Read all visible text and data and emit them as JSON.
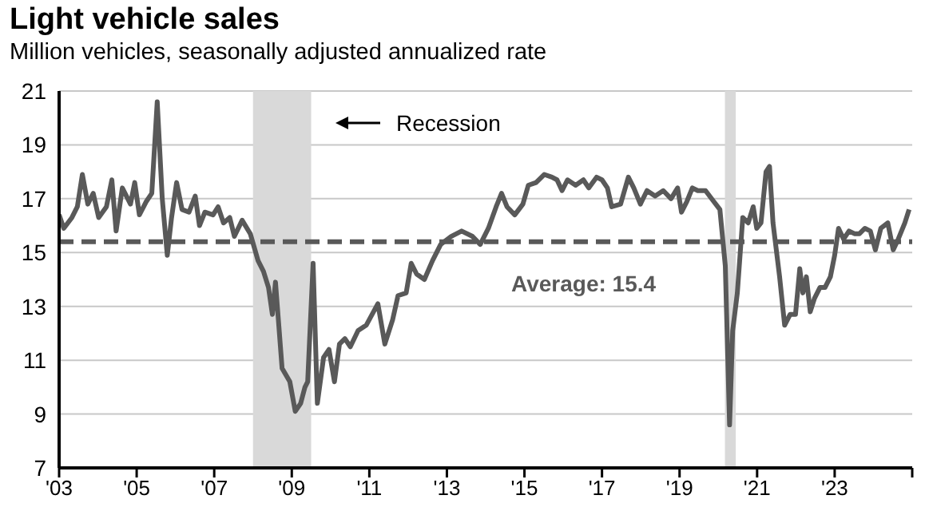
{
  "chart_data": {
    "type": "line",
    "title": "Light vehicle sales",
    "subtitle": "Million vehicles, seasonally adjusted annualized rate",
    "x": [
      2003.0,
      2003.12,
      2003.33,
      2003.47,
      2003.6,
      2003.74,
      2003.88,
      2004.02,
      2004.22,
      2004.36,
      2004.47,
      2004.63,
      2004.84,
      2004.95,
      2005.07,
      2005.25,
      2005.39,
      2005.53,
      2005.66,
      2005.79,
      2005.9,
      2006.03,
      2006.17,
      2006.35,
      2006.51,
      2006.62,
      2006.76,
      2006.97,
      2007.1,
      2007.24,
      2007.4,
      2007.52,
      2007.72,
      2007.93,
      2008.13,
      2008.27,
      2008.4,
      2008.5,
      2008.58,
      2008.75,
      2008.95,
      2009.09,
      2009.23,
      2009.34,
      2009.41,
      2009.55,
      2009.66,
      2009.82,
      2009.96,
      2010.1,
      2010.23,
      2010.37,
      2010.51,
      2010.71,
      2010.92,
      2011.22,
      2011.4,
      2011.6,
      2011.74,
      2011.95,
      2012.08,
      2012.22,
      2012.42,
      2012.63,
      2012.84,
      2013.11,
      2013.38,
      2013.66,
      2013.86,
      2014.07,
      2014.27,
      2014.41,
      2014.55,
      2014.75,
      2014.96,
      2015.1,
      2015.3,
      2015.51,
      2015.71,
      2015.84,
      2015.97,
      2016.11,
      2016.32,
      2016.52,
      2016.66,
      2016.86,
      2017.0,
      2017.14,
      2017.25,
      2017.48,
      2017.68,
      2017.82,
      2017.99,
      2018.16,
      2018.37,
      2018.58,
      2018.78,
      2018.95,
      2019.05,
      2019.19,
      2019.33,
      2019.47,
      2019.67,
      2019.88,
      2020.04,
      2020.18,
      2020.29,
      2020.37,
      2020.49,
      2020.63,
      2020.77,
      2020.9,
      2020.99,
      2021.1,
      2021.23,
      2021.32,
      2021.41,
      2021.58,
      2021.71,
      2021.85,
      2021.99,
      2022.1,
      2022.18,
      2022.27,
      2022.37,
      2022.48,
      2022.62,
      2022.75,
      2022.89,
      2023.0,
      2023.1,
      2023.23,
      2023.37,
      2023.51,
      2023.64,
      2023.78,
      2023.92,
      2024.05,
      2024.19,
      2024.37,
      2024.51,
      2024.64,
      2024.81,
      2024.92
    ],
    "series": [
      {
        "color": "#595959",
        "values": [
          16.4,
          15.9,
          16.3,
          16.7,
          17.9,
          16.8,
          17.2,
          16.3,
          16.7,
          17.7,
          15.8,
          17.4,
          16.8,
          17.6,
          16.4,
          16.9,
          17.2,
          20.6,
          17.0,
          14.9,
          16.3,
          17.6,
          16.6,
          16.5,
          17.1,
          16.0,
          16.5,
          16.4,
          16.7,
          16.1,
          16.3,
          15.6,
          16.2,
          15.7,
          14.7,
          14.3,
          13.7,
          12.7,
          13.9,
          10.7,
          10.2,
          9.1,
          9.4,
          10.0,
          10.2,
          14.6,
          9.4,
          11.1,
          11.4,
          10.2,
          11.6,
          11.8,
          11.5,
          12.1,
          12.3,
          13.1,
          11.6,
          12.5,
          13.4,
          13.5,
          14.6,
          14.2,
          14.0,
          14.7,
          15.3,
          15.6,
          15.8,
          15.6,
          15.3,
          15.9,
          16.7,
          17.2,
          16.7,
          16.4,
          16.8,
          17.5,
          17.6,
          17.9,
          17.8,
          17.7,
          17.3,
          17.7,
          17.5,
          17.7,
          17.4,
          17.8,
          17.7,
          17.4,
          16.7,
          16.8,
          17.8,
          17.4,
          16.8,
          17.3,
          17.1,
          17.3,
          17.0,
          17.4,
          16.5,
          16.9,
          17.4,
          17.3,
          17.3,
          16.9,
          16.6,
          14.5,
          8.6,
          12.1,
          13.5,
          16.3,
          16.1,
          16.7,
          15.9,
          16.1,
          18.0,
          18.2,
          16.1,
          14.1,
          12.3,
          12.7,
          12.7,
          14.4,
          13.5,
          14.1,
          12.8,
          13.3,
          13.7,
          13.7,
          14.1,
          14.9,
          15.9,
          15.5,
          15.8,
          15.7,
          15.7,
          15.9,
          15.8,
          15.1,
          15.9,
          16.1,
          15.1,
          15.5,
          16.1,
          16.6
        ]
      }
    ],
    "xlim": [
      2003,
      2025
    ],
    "xticks": [
      {
        "value": 2003,
        "label": "'03"
      },
      {
        "value": 2005,
        "label": "'05"
      },
      {
        "value": 2007,
        "label": "'07"
      },
      {
        "value": 2009,
        "label": "'09"
      },
      {
        "value": 2011,
        "label": "'11"
      },
      {
        "value": 2013,
        "label": "'13"
      },
      {
        "value": 2015,
        "label": "'15"
      },
      {
        "value": 2017,
        "label": "'17"
      },
      {
        "value": 2019,
        "label": "'19"
      },
      {
        "value": 2021,
        "label": "'21"
      },
      {
        "value": 2023,
        "label": "'23"
      },
      {
        "value": 2025,
        "label": null
      }
    ],
    "ylim": [
      7,
      21
    ],
    "yticks": [
      7,
      9,
      11,
      13,
      15,
      17,
      19,
      21
    ],
    "grid": "y",
    "marker": "none",
    "annotations": [
      "Recession"
    ],
    "line_style": "solid",
    "ref_lines": [
      {
        "axis": "y",
        "value": 15.4,
        "label": "Average: 15.4",
        "color": "#595959",
        "line_style": "dashed"
      }
    ],
    "bands": [
      {
        "axis": "x",
        "from": 2008.0,
        "to": 2009.5,
        "color": "#d9d9d9"
      },
      {
        "axis": "x",
        "from": 2020.17,
        "to": 2020.45,
        "color": "#d9d9d9"
      }
    ]
  }
}
